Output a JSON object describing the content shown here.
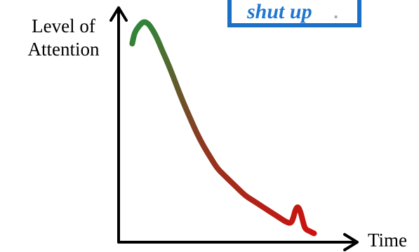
{
  "callout": {
    "text": "shut up",
    "trailing": "."
  },
  "chart_data": {
    "type": "line",
    "title": "",
    "xlabel": "Time",
    "ylabel": "Level of\nAttention",
    "ticks": false,
    "grid": false,
    "xlim": [
      0,
      100
    ],
    "ylim": [
      0,
      100
    ],
    "color_start": "#2a8a3a",
    "color_end": "#d40d0d",
    "series": [
      {
        "points": [
          [
            5,
            88
          ],
          [
            6,
            93
          ],
          [
            8,
            96
          ],
          [
            10,
            98
          ],
          [
            12,
            97
          ],
          [
            14,
            94
          ],
          [
            16,
            90
          ],
          [
            18,
            85
          ],
          [
            21,
            78
          ],
          [
            24,
            70
          ],
          [
            27,
            62
          ],
          [
            30,
            55
          ],
          [
            33,
            48
          ],
          [
            36,
            42
          ],
          [
            39,
            37
          ],
          [
            42,
            32
          ],
          [
            45,
            29
          ],
          [
            48,
            26
          ],
          [
            51,
            23
          ],
          [
            54,
            20
          ],
          [
            57,
            18
          ],
          [
            60,
            16
          ],
          [
            63,
            14
          ],
          [
            66,
            12
          ],
          [
            69,
            10
          ],
          [
            72,
            8
          ],
          [
            74,
            7.5
          ],
          [
            75,
            10
          ],
          [
            76,
            14
          ],
          [
            77,
            15
          ],
          [
            78,
            13
          ],
          [
            79,
            9
          ],
          [
            80,
            5
          ],
          [
            82,
            4
          ],
          [
            84,
            3
          ]
        ]
      }
    ]
  }
}
